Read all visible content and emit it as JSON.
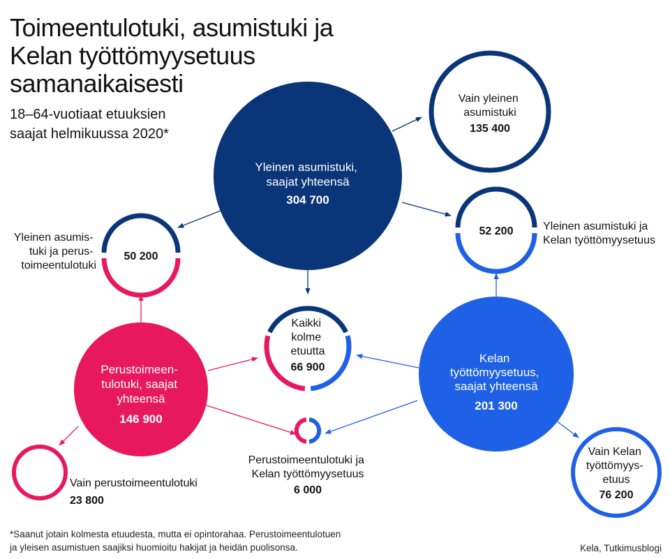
{
  "title": {
    "line1": "Toimeentulotuki, asumistuki ja",
    "line2": "Kelan työttömyysetuus",
    "line3": "samanaikaisesti"
  },
  "subtitle": {
    "line1": "18–64-vuotiaat etuuksien",
    "line2": "saajat helmikuussa 2020*"
  },
  "colors": {
    "housing": "#0a3578",
    "unemployment": "#1e60e6",
    "income_support": "#e8185f"
  },
  "nodes": {
    "housing_total": {
      "line1": "Yleinen asumistuki,",
      "line2": "saajat yhteensä",
      "value": "304 700"
    },
    "unemployment_total": {
      "line1": "Kelan",
      "line2": "työttömyysetuus,",
      "line3": "saajat yhteensä",
      "value": "201 300"
    },
    "income_total": {
      "line1": "Perustoimeen-",
      "line2": "tulotuki, saajat",
      "line3": "yhteensä",
      "value": "146 900"
    },
    "only_housing": {
      "line1": "Vain yleinen",
      "line2": "asumistuki",
      "value": "135 400"
    },
    "housing_unemployment": {
      "value": "52 200",
      "label_line1": "Yleinen asumistuki ja",
      "label_line2": "Kelan työttömyysetuus"
    },
    "housing_income": {
      "value": "50 200",
      "label_line1": "Yleinen asumis-",
      "label_line2": "tuki ja perus-",
      "label_line3": "toimeentulotuki"
    },
    "all_three": {
      "line1": "Kaikki",
      "line2": "kolme",
      "line3": "etuutta",
      "value": "66 900"
    },
    "income_unemployment": {
      "label_line1": "Perustoimeentulotuki ja",
      "label_line2": "Kelan työttömyysetuus",
      "value": "6 000"
    },
    "only_income": {
      "label": "Vain perustoimeentulotuki",
      "value": "23 800"
    },
    "only_unemployment": {
      "line1": "Vain Kelan",
      "line2": "työttömyys-",
      "line3": "etuus",
      "value": "76 200"
    }
  },
  "footnote": {
    "line1": "*Saanut jotain kolmesta etuudesta, mutta ei opintorahaa. Perustoimeentulotuen",
    "line2": "ja yleisen asumistuen saajiksi huomioitu hakijat ja heidän puolisonsa."
  },
  "source": "Kela, Tutkimusblogi"
}
